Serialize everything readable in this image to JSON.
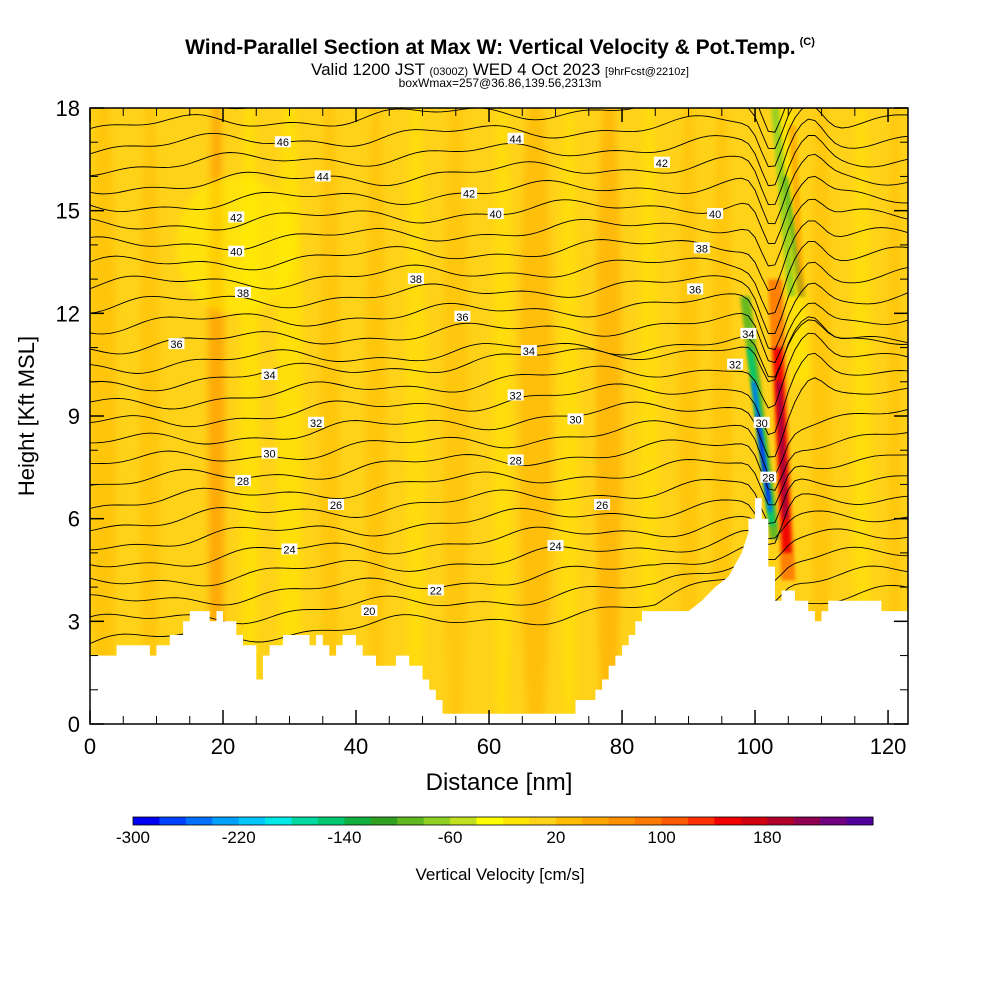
{
  "header": {
    "title": "Wind-Parallel Section at Max W: Vertical Velocity & Pot.Temp.",
    "copyright": "(C)",
    "valid_main": "Valid 1200 JST",
    "valid_z": "(0300Z)",
    "valid_date": "WED 4 Oct 2023",
    "valid_fcst": "[9hrFcst@2210z]",
    "box_info": "boxWmax=257@36.86,139.56,2313m"
  },
  "colors": {
    "background_field": "#FFD21A",
    "terrain": "#ffffff",
    "contour": "#000000",
    "colorbar": [
      "#0000F0",
      "#0040FF",
      "#0070FF",
      "#00A0FF",
      "#00C8FF",
      "#00E8E8",
      "#00D8A0",
      "#00C870",
      "#10B040",
      "#30A020",
      "#60B820",
      "#90D020",
      "#C0E020",
      "#FFFF00",
      "#FFE600",
      "#FFD21A",
      "#FFBC00",
      "#FFA600",
      "#FF9000",
      "#FF7800",
      "#FF5A00",
      "#FF3000",
      "#F00000",
      "#D00010",
      "#B0002A",
      "#900050",
      "#700080",
      "#50009A"
    ]
  },
  "chart_data": {
    "type": "heatmap",
    "xlabel": "Distance [nm]",
    "ylabel": "Height [Kft MSL]",
    "xlim": [
      0,
      123
    ],
    "ylim": [
      0,
      18
    ],
    "x_ticks": [
      "0",
      "20",
      "40",
      "60",
      "80",
      "100",
      "120"
    ],
    "y_ticks": [
      "0",
      "3",
      "6",
      "9",
      "12",
      "15",
      "18"
    ],
    "colorbar": {
      "label": "Vertical Velocity [cm/s]",
      "tick_labels": [
        "-300",
        "-220",
        "-140",
        "-60",
        "20",
        "100",
        "180"
      ],
      "range": [
        -300,
        260
      ]
    },
    "terrain_profile": [
      [
        0,
        2.0
      ],
      [
        4,
        2.0
      ],
      [
        4,
        2.3
      ],
      [
        9,
        2.3
      ],
      [
        9,
        2.0
      ],
      [
        10,
        2.0
      ],
      [
        10,
        2.3
      ],
      [
        12,
        2.3
      ],
      [
        12,
        2.6
      ],
      [
        14,
        2.6
      ],
      [
        14,
        3.0
      ],
      [
        15,
        3.0
      ],
      [
        15,
        3.3
      ],
      [
        18,
        3.3
      ],
      [
        18,
        3.0
      ],
      [
        19,
        3.0
      ],
      [
        19,
        3.3
      ],
      [
        20,
        3.3
      ],
      [
        20,
        3.0
      ],
      [
        22,
        3.0
      ],
      [
        22,
        2.6
      ],
      [
        23,
        2.6
      ],
      [
        23,
        2.3
      ],
      [
        25,
        2.3
      ],
      [
        25,
        1.3
      ],
      [
        26,
        1.3
      ],
      [
        26,
        2.0
      ],
      [
        27,
        2.0
      ],
      [
        27,
        2.3
      ],
      [
        29,
        2.3
      ],
      [
        29,
        2.6
      ],
      [
        33,
        2.6
      ],
      [
        33,
        2.3
      ],
      [
        34,
        2.3
      ],
      [
        34,
        2.6
      ],
      [
        35,
        2.6
      ],
      [
        35,
        2.3
      ],
      [
        36,
        2.3
      ],
      [
        36,
        2.0
      ],
      [
        37,
        2.0
      ],
      [
        37,
        2.3
      ],
      [
        38,
        2.3
      ],
      [
        38,
        2.6
      ],
      [
        40,
        2.6
      ],
      [
        40,
        2.3
      ],
      [
        41,
        2.3
      ],
      [
        41,
        2.0
      ],
      [
        43,
        2.0
      ],
      [
        43,
        1.7
      ],
      [
        46,
        1.7
      ],
      [
        46,
        2.0
      ],
      [
        48,
        2.0
      ],
      [
        48,
        1.7
      ],
      [
        50,
        1.7
      ],
      [
        50,
        1.3
      ],
      [
        51,
        1.3
      ],
      [
        51,
        1.0
      ],
      [
        52,
        1.0
      ],
      [
        52,
        0.7
      ],
      [
        53,
        0.7
      ],
      [
        53,
        0.3
      ],
      [
        60,
        0.3
      ],
      [
        60,
        0.3
      ],
      [
        72,
        0.3
      ],
      [
        72,
        0.3
      ],
      [
        73,
        0.3
      ],
      [
        73,
        0.7
      ],
      [
        76,
        0.7
      ],
      [
        76,
        1.0
      ],
      [
        77,
        1.0
      ],
      [
        77,
        1.3
      ],
      [
        78,
        1.3
      ],
      [
        78,
        1.7
      ],
      [
        79,
        1.7
      ],
      [
        79,
        2.0
      ],
      [
        80,
        2.0
      ],
      [
        80,
        2.3
      ],
      [
        81,
        2.3
      ],
      [
        81,
        2.6
      ],
      [
        82,
        2.6
      ],
      [
        82,
        3.0
      ],
      [
        83,
        3.0
      ],
      [
        83,
        3.3
      ],
      [
        90,
        3.3
      ],
      [
        92,
        3.6
      ],
      [
        94,
        4.0
      ],
      [
        96,
        4.3
      ],
      [
        98,
        5.0
      ],
      [
        99,
        5.6
      ],
      [
        99,
        6.0
      ],
      [
        100,
        6.0
      ],
      [
        100,
        6.6
      ],
      [
        101,
        6.6
      ],
      [
        101,
        6.0
      ],
      [
        102,
        6.0
      ],
      [
        102,
        4.6
      ],
      [
        103,
        4.6
      ],
      [
        103,
        3.6
      ],
      [
        104,
        3.6
      ],
      [
        104,
        3.9
      ],
      [
        106,
        3.9
      ],
      [
        106,
        3.6
      ],
      [
        108,
        3.6
      ],
      [
        108,
        3.3
      ],
      [
        109,
        3.3
      ],
      [
        109,
        3.0
      ],
      [
        110,
        3.0
      ],
      [
        110,
        3.3
      ],
      [
        111,
        3.3
      ],
      [
        111,
        3.6
      ],
      [
        119,
        3.6
      ],
      [
        119,
        3.3
      ],
      [
        123,
        3.3
      ]
    ],
    "contour_labels": [
      {
        "value": "46",
        "x": 29,
        "y": 17.0
      },
      {
        "value": "44",
        "x": 64,
        "y": 17.1
      },
      {
        "value": "42",
        "x": 86,
        "y": 16.4
      },
      {
        "value": "44",
        "x": 35,
        "y": 16.0
      },
      {
        "value": "42",
        "x": 57,
        "y": 15.5
      },
      {
        "value": "42",
        "x": 22,
        "y": 14.8
      },
      {
        "value": "40",
        "x": 61,
        "y": 14.9
      },
      {
        "value": "40",
        "x": 94,
        "y": 14.9
      },
      {
        "value": "40",
        "x": 22,
        "y": 13.8
      },
      {
        "value": "38",
        "x": 92,
        "y": 13.9
      },
      {
        "value": "38",
        "x": 49,
        "y": 13.0
      },
      {
        "value": "38",
        "x": 23,
        "y": 12.6
      },
      {
        "value": "36",
        "x": 91,
        "y": 12.7
      },
      {
        "value": "36",
        "x": 56,
        "y": 11.9
      },
      {
        "value": "34",
        "x": 99,
        "y": 11.4
      },
      {
        "value": "36",
        "x": 13,
        "y": 11.1
      },
      {
        "value": "34",
        "x": 66,
        "y": 10.9
      },
      {
        "value": "32",
        "x": 97,
        "y": 10.5
      },
      {
        "value": "34",
        "x": 27,
        "y": 10.2
      },
      {
        "value": "32",
        "x": 64,
        "y": 9.6
      },
      {
        "value": "30",
        "x": 73,
        "y": 8.9
      },
      {
        "value": "32",
        "x": 34,
        "y": 8.8
      },
      {
        "value": "30",
        "x": 101,
        "y": 8.8
      },
      {
        "value": "30",
        "x": 27,
        "y": 7.9
      },
      {
        "value": "28",
        "x": 64,
        "y": 7.7
      },
      {
        "value": "28",
        "x": 102,
        "y": 7.2
      },
      {
        "value": "28",
        "x": 23,
        "y": 7.1
      },
      {
        "value": "26",
        "x": 37,
        "y": 6.4
      },
      {
        "value": "26",
        "x": 77,
        "y": 6.4
      },
      {
        "value": "24",
        "x": 30,
        "y": 5.1
      },
      {
        "value": "24",
        "x": 70,
        "y": 5.2
      },
      {
        "value": "22",
        "x": 52,
        "y": 3.9
      },
      {
        "value": "20",
        "x": 42,
        "y": 3.3
      }
    ]
  }
}
